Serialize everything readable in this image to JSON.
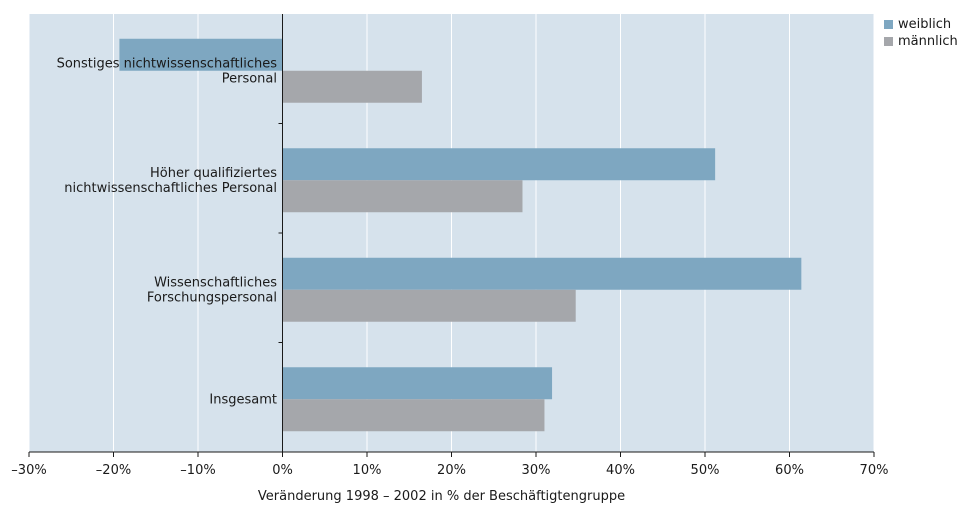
{
  "chart_data": {
    "type": "bar",
    "orientation": "horizontal",
    "categories": [
      "Sonstiges nichtwissenschaftliches Personal",
      "Höher qualifiziertes nichtwissenschaftliches Personal",
      "Wissenschaftliches Forschungspersonal",
      "Insgesamt"
    ],
    "category_label_lines": [
      [
        "Sonstiges nichtwissenschaftliches",
        "Personal"
      ],
      [
        "Höher qualifiziertes",
        "nichtwissenschaftliches Personal"
      ],
      [
        "Wissenschaftliches",
        "Forschungspersonal"
      ],
      [
        "Insgesamt"
      ]
    ],
    "series": [
      {
        "name": "weiblich",
        "values": [
          -19.3,
          51.2,
          61.4,
          31.9
        ],
        "color": "#7ea7c1"
      },
      {
        "name": "männlich",
        "values": [
          16.5,
          28.4,
          34.7,
          31.0
        ],
        "color": "#a5a7ab"
      }
    ],
    "xlim": [
      -30,
      70
    ],
    "ticks": [
      -30,
      -20,
      -10,
      0,
      10,
      20,
      30,
      40,
      50,
      60,
      70
    ],
    "tick_labels": [
      "–30%",
      "–20%",
      "–10%",
      "0%",
      "10%",
      "20%",
      "30%",
      "40%",
      "50%",
      "60%",
      "70%"
    ],
    "xlabel": "Veränderung 1998 – 2002 in % der Beschäftigtengruppe",
    "ylabel": "",
    "title": "",
    "grid": true,
    "legend_position": "top-right",
    "background_color": "#d6e2ec",
    "gridline_color": "#ffffff"
  }
}
